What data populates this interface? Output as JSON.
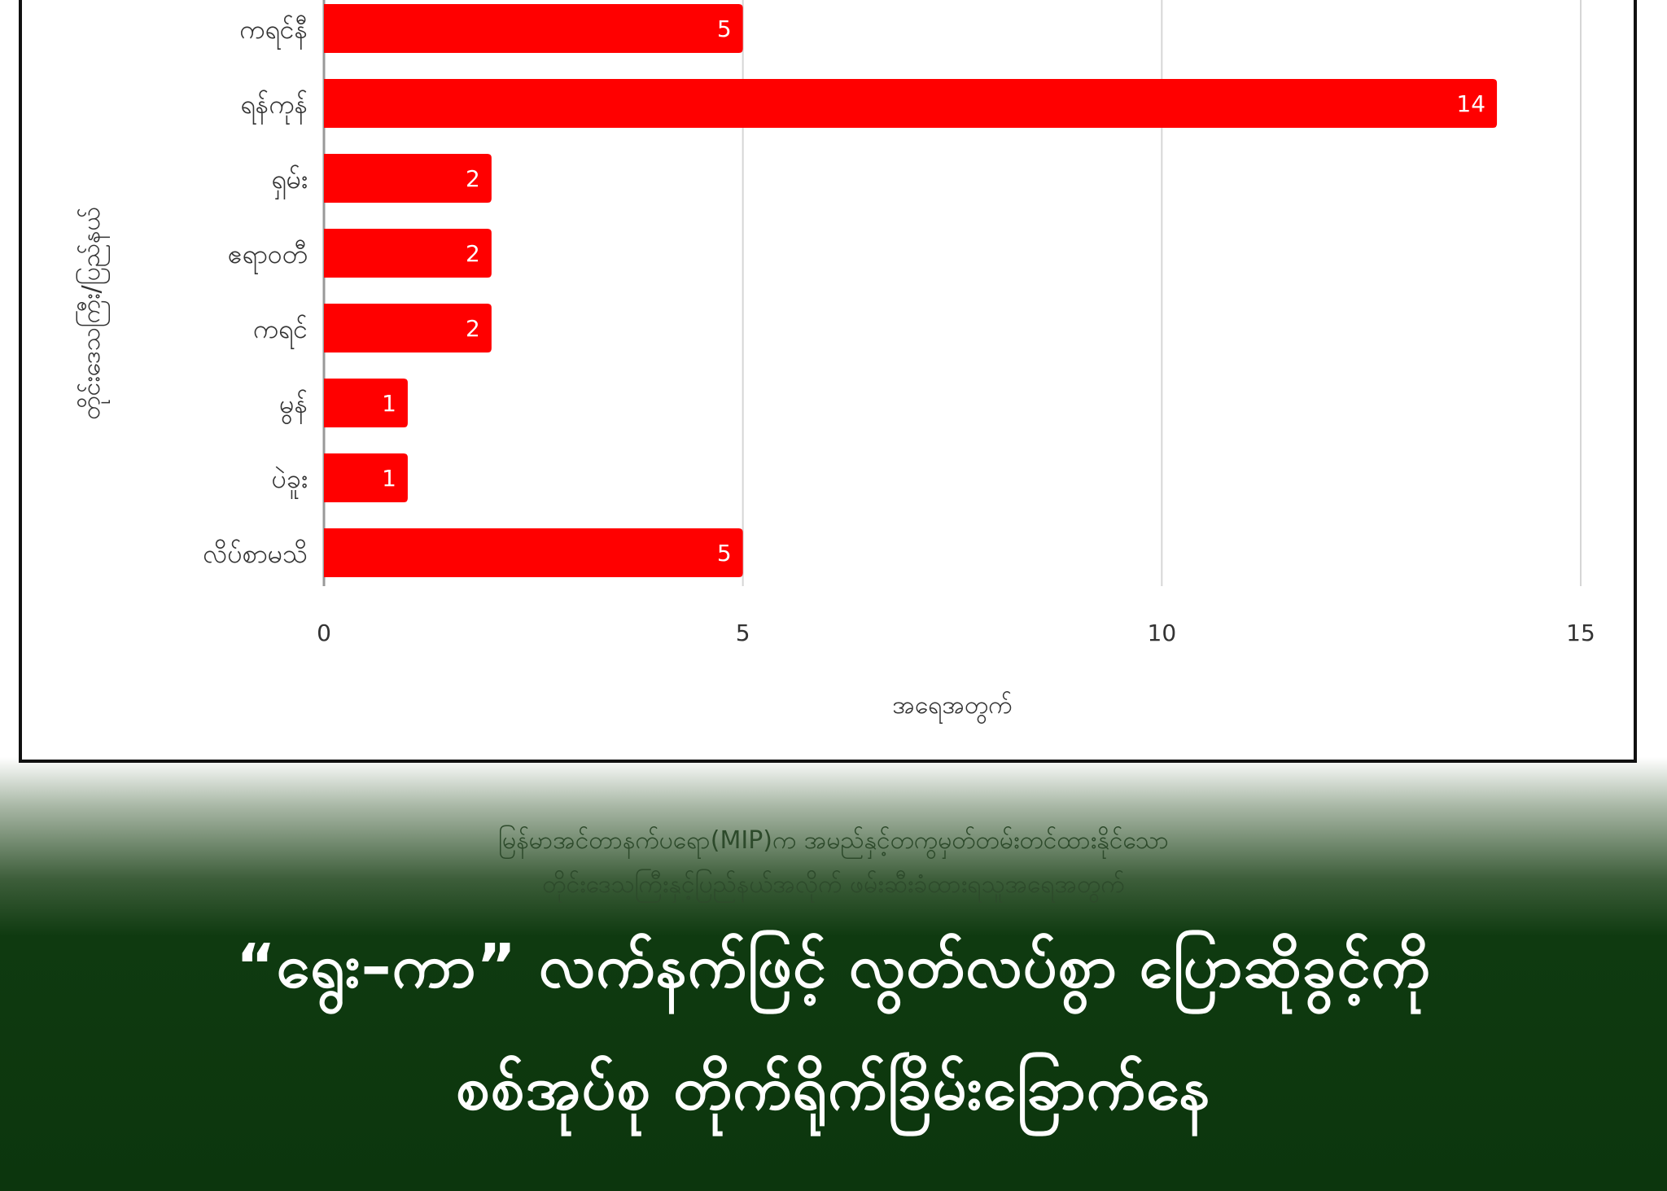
{
  "chart_data": {
    "type": "bar",
    "orientation": "horizontal",
    "categories": [
      "ကရင်နီ",
      "ရန်ကုန်",
      "ရှမ်း",
      "ဧရာဝတီ",
      "ကရင်",
      "မွန်",
      "ပဲခူး",
      "လိပ်စာမသိ"
    ],
    "values": [
      5,
      14,
      2,
      2,
      2,
      1,
      1,
      5
    ],
    "xlabel": "အရေအတွက်",
    "ylabel": "တိုင်းဒေသကြီး/ပြည်နယ်",
    "xlim": [
      0,
      15
    ],
    "xticks": [
      0,
      5,
      10,
      15
    ],
    "grid": true,
    "bar_color": "#ff0000",
    "data_labels": true
  },
  "caption": {
    "line1": "မြန်မာအင်တာနက်ပရော(MIP)က အမည်နှင့်တကွမှတ်တမ်းတင်ထားနိုင်သော",
    "line2": "တိုင်းဒေသကြီးနှင့်ပြည်နယ်အလိုက် ဖမ်းဆီးခံထားရသူအရေအတွက်"
  },
  "headline": {
    "line1": "“ရွေး–ကာ” လက်နက်ဖြင့် လွတ်လပ်စွာ ပြောဆိုခွင့်ကို",
    "line2": "စစ်အုပ်စု တိုက်ရိုက်ခြိမ်းခြောက်နေ"
  },
  "colors": {
    "background_green": "#0c360d",
    "bar": "#ff0000"
  }
}
